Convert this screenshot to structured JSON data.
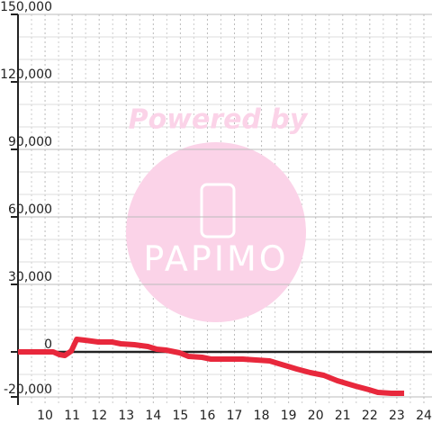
{
  "chart_data": {
    "type": "line",
    "x": [
      9,
      10.3,
      10.53,
      10.73,
      10.97,
      11.17,
      11.47,
      11.97,
      12.47,
      12.8,
      13.3,
      13.8,
      14.13,
      14.47,
      14.97,
      15.3,
      15.8,
      16.13,
      17.3,
      17.8,
      18.3,
      18.63,
      18.97,
      19.3,
      19.8,
      20.3,
      20.8,
      21.47,
      21.97,
      22.3,
      22.8,
      23.27
    ],
    "series": [
      {
        "color": "#e8283c",
        "values": [
          0,
          0,
          -1200,
          -1600,
          400,
          5600,
          5200,
          4400,
          4400,
          3600,
          3200,
          2400,
          1200,
          800,
          -400,
          -2000,
          -2400,
          -3200,
          -3200,
          -3600,
          -4000,
          -5200,
          -6400,
          -7600,
          -9200,
          -10400,
          -12800,
          -15200,
          -16800,
          -18000,
          -18400,
          -18400
        ]
      }
    ],
    "xlim": [
      9,
      24.3
    ],
    "xticks": [
      10,
      11,
      12,
      13,
      14,
      15,
      16,
      17,
      18,
      19,
      20,
      21,
      22,
      23,
      24
    ],
    "minor_xticks": [
      9.5,
      10.5,
      11.5,
      12.5,
      13.5,
      14.5,
      15.5,
      16.5,
      17.5,
      18.5,
      19.5,
      20.5,
      21.5,
      22.5,
      23.5
    ],
    "ylim": [
      -23600,
      150000
    ],
    "yticks": [
      {
        "value": -20000,
        "label": "-20,000"
      },
      0,
      {
        "value": 30000,
        "label": "30,000"
      },
      {
        "value": 60000,
        "label": "60,000"
      },
      {
        "value": 90000,
        "label": "90,000"
      },
      {
        "value": 120000,
        "label": "120,000"
      },
      {
        "value": 150000,
        "label": "150,000"
      }
    ],
    "minor_yticks": [
      -10000,
      10000,
      20000,
      40000,
      50000,
      70000,
      80000,
      100000,
      110000,
      130000,
      140000
    ],
    "grid": true,
    "watermark": {
      "top": "Powered by",
      "bottom": "PAPIMO"
    }
  }
}
